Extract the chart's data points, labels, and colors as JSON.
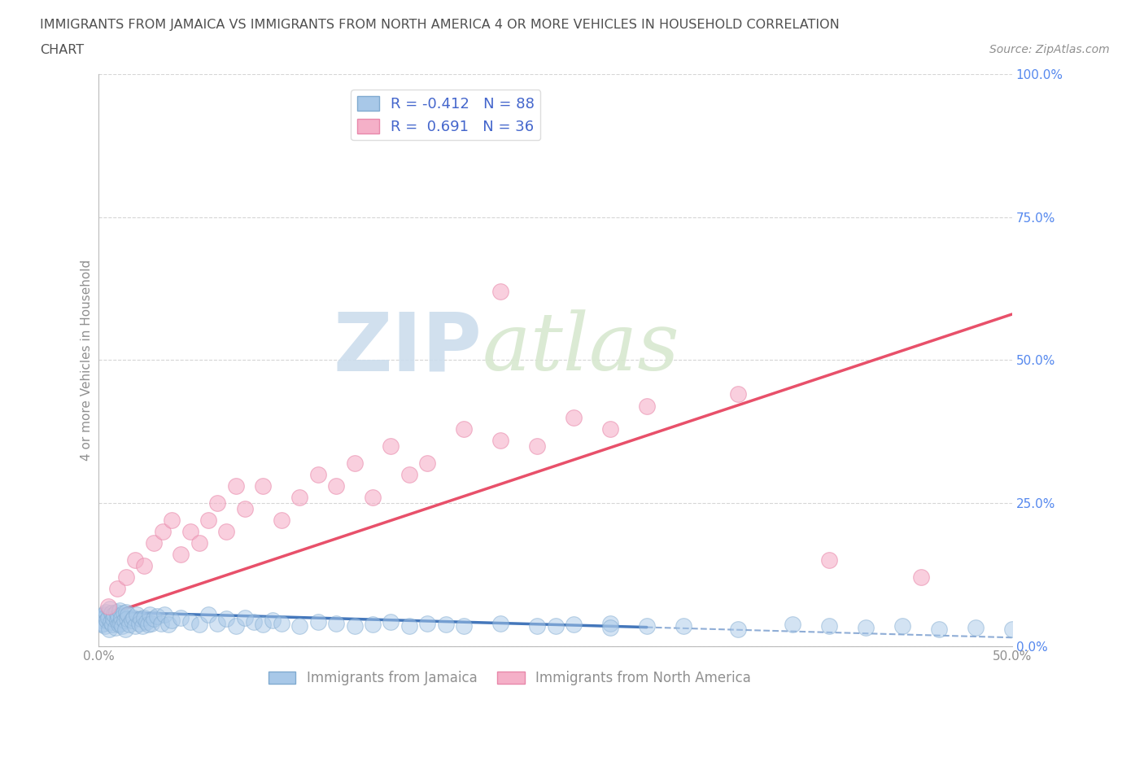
{
  "title_line1": "IMMIGRANTS FROM JAMAICA VS IMMIGRANTS FROM NORTH AMERICA 4 OR MORE VEHICLES IN HOUSEHOLD CORRELATION",
  "title_line2": "CHART",
  "source_text": "Source: ZipAtlas.com",
  "xlabel": "Immigrants from Jamaica",
  "ylabel": "4 or more Vehicles in Household",
  "xlim": [
    0.0,
    50.0
  ],
  "ylim": [
    0.0,
    100.0
  ],
  "xticks": [
    0.0,
    10.0,
    20.0,
    30.0,
    40.0,
    50.0
  ],
  "yticks": [
    0.0,
    25.0,
    50.0,
    75.0,
    100.0
  ],
  "xtick_labels": [
    "0.0%",
    "",
    "",
    "",
    "",
    "50.0%"
  ],
  "ytick_labels": [
    "0.0%",
    "25.0%",
    "50.0%",
    "75.0%",
    "100.0%"
  ],
  "series_blue": {
    "label": "Immigrants from Jamaica",
    "R": -0.412,
    "N": 88,
    "marker_color": "#a8c8e8",
    "marker_edge": "#80aad0",
    "line_color": "#4477bb"
  },
  "series_pink": {
    "label": "Immigrants from North America",
    "R": 0.691,
    "N": 36,
    "marker_color": "#f5b0c8",
    "marker_edge": "#e888aa",
    "line_color": "#e8506a"
  },
  "watermark_zip": "ZIP",
  "watermark_atlas": "atlas",
  "watermark_color": "#ccdded",
  "background_color": "#ffffff",
  "title_color": "#505050",
  "axis_color": "#909090",
  "tick_color_y": "#5588ee",
  "grid_color": "#cccccc",
  "blue_scatter_x": [
    0.1,
    0.15,
    0.2,
    0.25,
    0.3,
    0.35,
    0.4,
    0.45,
    0.5,
    0.55,
    0.6,
    0.65,
    0.7,
    0.75,
    0.8,
    0.85,
    0.9,
    0.95,
    1.0,
    1.05,
    1.1,
    1.15,
    1.2,
    1.25,
    1.3,
    1.35,
    1.4,
    1.45,
    1.5,
    1.55,
    1.6,
    1.7,
    1.8,
    1.9,
    2.0,
    2.1,
    2.2,
    2.3,
    2.4,
    2.5,
    2.6,
    2.7,
    2.8,
    2.9,
    3.0,
    3.2,
    3.4,
    3.6,
    3.8,
    4.0,
    4.5,
    5.0,
    5.5,
    6.0,
    6.5,
    7.0,
    7.5,
    8.0,
    8.5,
    9.0,
    9.5,
    10.0,
    11.0,
    12.0,
    13.0,
    14.0,
    15.0,
    16.0,
    17.0,
    18.0,
    19.0,
    20.0,
    22.0,
    24.0,
    26.0,
    28.0,
    30.0,
    32.0,
    35.0,
    38.0,
    40.0,
    42.0,
    44.0,
    46.0,
    48.0,
    50.0,
    25.0,
    28.0
  ],
  "blue_scatter_y": [
    4.5,
    3.8,
    5.2,
    4.0,
    5.5,
    3.5,
    6.0,
    4.5,
    5.0,
    3.0,
    6.5,
    4.2,
    5.8,
    3.8,
    4.8,
    5.5,
    3.2,
    6.0,
    4.5,
    5.2,
    3.8,
    6.2,
    4.0,
    5.0,
    3.5,
    5.8,
    4.5,
    3.0,
    6.0,
    4.8,
    5.5,
    3.8,
    4.5,
    5.0,
    3.5,
    5.5,
    4.0,
    4.8,
    3.5,
    5.0,
    4.2,
    3.8,
    5.5,
    4.0,
    4.8,
    5.2,
    4.0,
    5.5,
    3.8,
    4.5,
    5.0,
    4.2,
    3.8,
    5.5,
    4.0,
    4.8,
    3.5,
    5.0,
    4.2,
    3.8,
    4.5,
    4.0,
    3.5,
    4.2,
    4.0,
    3.5,
    3.8,
    4.2,
    3.5,
    4.0,
    3.8,
    3.5,
    4.0,
    3.5,
    3.8,
    4.0,
    3.5,
    3.5,
    3.0,
    3.8,
    3.5,
    3.2,
    3.5,
    3.0,
    3.2,
    3.0,
    3.5,
    3.2
  ],
  "pink_scatter_x": [
    0.5,
    1.0,
    1.5,
    2.0,
    2.5,
    3.0,
    3.5,
    4.0,
    4.5,
    5.0,
    5.5,
    6.0,
    6.5,
    7.0,
    7.5,
    8.0,
    9.0,
    10.0,
    11.0,
    12.0,
    13.0,
    14.0,
    15.0,
    16.0,
    17.0,
    18.0,
    20.0,
    22.0,
    24.0,
    26.0,
    28.0,
    30.0,
    35.0,
    40.0,
    45.0,
    22.0
  ],
  "pink_scatter_y": [
    7.0,
    10.0,
    12.0,
    15.0,
    14.0,
    18.0,
    20.0,
    22.0,
    16.0,
    20.0,
    18.0,
    22.0,
    25.0,
    20.0,
    28.0,
    24.0,
    28.0,
    22.0,
    26.0,
    30.0,
    28.0,
    32.0,
    26.0,
    35.0,
    30.0,
    32.0,
    38.0,
    36.0,
    35.0,
    40.0,
    38.0,
    42.0,
    44.0,
    15.0,
    12.0,
    62.0
  ],
  "blue_line_x0": 0.0,
  "blue_line_x1": 50.0,
  "blue_line_y0": 6.0,
  "blue_line_y1": 1.5,
  "pink_line_x0": 0.0,
  "pink_line_x1": 50.0,
  "pink_line_y0": 5.0,
  "pink_line_y1": 58.0
}
